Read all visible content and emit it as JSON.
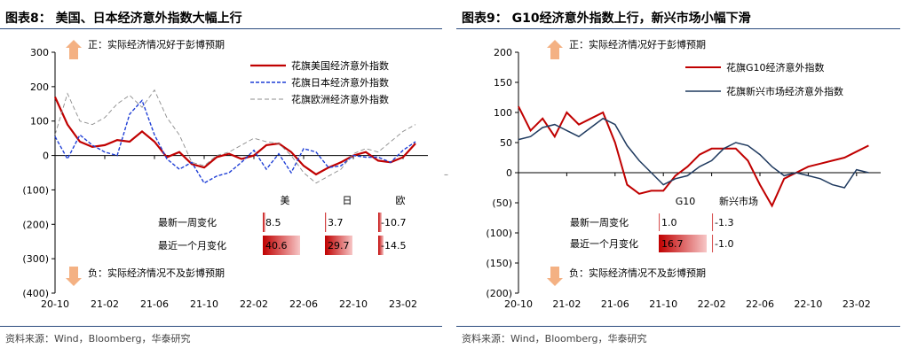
{
  "left": {
    "title": "图表8：  美国、日本经济意外指数大幅上行",
    "source": "资料来源：Wind，Bloomberg，华泰研究",
    "colors": {
      "us": "#c00000",
      "jp": "#1f3fd6",
      "eu": "#8c8c8c",
      "arrow": "#f4b183"
    },
    "chart_data": {
      "type": "line",
      "ylim": [
        -400,
        300
      ],
      "yticks": [
        "300",
        "200",
        "100",
        "0",
        "(100)",
        "(200)",
        "(300)",
        "(400)"
      ],
      "ytick_values": [
        300,
        200,
        100,
        0,
        -100,
        -200,
        -300,
        -400
      ],
      "xticks": [
        "20-10",
        "21-02",
        "21-06",
        "21-10",
        "22-02",
        "22-06",
        "22-10",
        "23-02"
      ],
      "xlim": [
        "2020-10",
        "2023-04"
      ],
      "annotations": {
        "up": "正：实际经济情况好于彭博预期",
        "down": "负：实际经济情况不及彭博预期"
      },
      "series": [
        {
          "name": "花旗美国经济意外指数",
          "style": "solid",
          "x": [
            "2020-10",
            "2020-11",
            "2020-12",
            "2021-01",
            "2021-02",
            "2021-03",
            "2021-04",
            "2021-05",
            "2021-06",
            "2021-07",
            "2021-08",
            "2021-09",
            "2021-10",
            "2021-11",
            "2021-12",
            "2022-01",
            "2022-02",
            "2022-03",
            "2022-04",
            "2022-05",
            "2022-06",
            "2022-07",
            "2022-08",
            "2022-09",
            "2022-10",
            "2022-11",
            "2022-12",
            "2023-01",
            "2023-02",
            "2023-03"
          ],
          "values": [
            170,
            90,
            40,
            25,
            30,
            45,
            40,
            70,
            40,
            -5,
            10,
            -25,
            -35,
            -5,
            5,
            -10,
            0,
            30,
            35,
            10,
            -30,
            -55,
            -35,
            -20,
            0,
            10,
            -15,
            -20,
            -5,
            35
          ]
        },
        {
          "name": "花旗日本经济意外指数",
          "style": "dashed",
          "x": [
            "2020-10",
            "2020-11",
            "2020-12",
            "2021-01",
            "2021-02",
            "2021-03",
            "2021-04",
            "2021-05",
            "2021-06",
            "2021-07",
            "2021-08",
            "2021-09",
            "2021-10",
            "2021-11",
            "2021-12",
            "2022-01",
            "2022-02",
            "2022-03",
            "2022-04",
            "2022-05",
            "2022-06",
            "2022-07",
            "2022-08",
            "2022-09",
            "2022-10",
            "2022-11",
            "2022-12",
            "2023-01",
            "2023-02",
            "2023-03"
          ],
          "values": [
            55,
            -10,
            60,
            30,
            10,
            0,
            120,
            160,
            60,
            -10,
            -40,
            -20,
            -80,
            -60,
            -50,
            -20,
            15,
            -40,
            5,
            -50,
            20,
            10,
            -35,
            -30,
            0,
            -5,
            -5,
            -20,
            15,
            40
          ]
        },
        {
          "name": "花旗欧洲经济意外指数",
          "style": "dashed-thin",
          "x": [
            "2020-10",
            "2020-11",
            "2020-12",
            "2021-01",
            "2021-02",
            "2021-03",
            "2021-04",
            "2021-05",
            "2021-06",
            "2021-07",
            "2021-08",
            "2021-09",
            "2021-10",
            "2021-11",
            "2021-12",
            "2022-01",
            "2022-02",
            "2022-03",
            "2022-04",
            "2022-05",
            "2022-06",
            "2022-07",
            "2022-08",
            "2022-09",
            "2022-10",
            "2022-11",
            "2022-12",
            "2023-01",
            "2023-02",
            "2023-03"
          ],
          "values": [
            60,
            180,
            100,
            90,
            110,
            150,
            175,
            140,
            190,
            110,
            60,
            -20,
            -30,
            0,
            10,
            30,
            50,
            40,
            35,
            0,
            -50,
            -80,
            -60,
            -40,
            5,
            20,
            10,
            40,
            70,
            90
          ]
        }
      ]
    },
    "table": {
      "headers": [
        "美",
        "日",
        "欧"
      ],
      "rows": [
        {
          "label": "最新一周变化",
          "values": [
            "8.5",
            "3.7",
            "-10.7"
          ],
          "fill": [
            0.06,
            0.03,
            0.08
          ]
        },
        {
          "label": "最近一个月变化",
          "values": [
            "40.6",
            "29.7",
            "-14.5"
          ],
          "fill": [
            0.84,
            0.62,
            0.12
          ]
        }
      ]
    }
  },
  "right": {
    "title": "图表9：  G10经济意外指数上行，新兴市场小幅下滑",
    "source": "资料来源：Wind，Bloomberg，华泰研究",
    "colors": {
      "g10": "#c00000",
      "em": "#1f3a5f",
      "arrow": "#f4b183"
    },
    "chart_data": {
      "type": "line",
      "ylim": [
        -200,
        200
      ],
      "yticks": [
        "200",
        "150",
        "100",
        "50",
        "0",
        "(50)",
        "(100)",
        "(150)",
        "(200)"
      ],
      "ytick_values": [
        200,
        150,
        100,
        50,
        0,
        -50,
        -100,
        -150,
        -200
      ],
      "xticks": [
        "20-10",
        "21-02",
        "21-06",
        "21-10",
        "22-02",
        "22-06",
        "22-10",
        "23-02"
      ],
      "xlim": [
        "2020-10",
        "2023-04"
      ],
      "annotations": {
        "up": "正：实际经济情况好于彭博预期",
        "down": "负：实际经济情况不及彭博预期"
      },
      "series": [
        {
          "name": "花旗G10经济意外指数",
          "style": "solid",
          "x": [
            "2020-10",
            "2020-11",
            "2020-12",
            "2021-01",
            "2021-02",
            "2021-03",
            "2021-04",
            "2021-05",
            "2021-06",
            "2021-07",
            "2021-08",
            "2021-09",
            "2021-10",
            "2021-11",
            "2021-12",
            "2022-01",
            "2022-02",
            "2022-03",
            "2022-04",
            "2022-05",
            "2022-06",
            "2022-07",
            "2022-08",
            "2022-09",
            "2022-10",
            "2022-11",
            "2022-12",
            "2023-01",
            "2023-02",
            "2023-03"
          ],
          "values": [
            110,
            70,
            90,
            60,
            100,
            80,
            90,
            100,
            50,
            -20,
            -35,
            -30,
            -30,
            -5,
            10,
            30,
            40,
            40,
            40,
            20,
            -20,
            -55,
            -10,
            0,
            10,
            15,
            20,
            25,
            35,
            45
          ]
        },
        {
          "name": "花旗新兴市场经济意外指数",
          "style": "solid",
          "x": [
            "2020-10",
            "2020-11",
            "2020-12",
            "2021-01",
            "2021-02",
            "2021-03",
            "2021-04",
            "2021-05",
            "2021-06",
            "2021-07",
            "2021-08",
            "2021-09",
            "2021-10",
            "2021-11",
            "2021-12",
            "2022-01",
            "2022-02",
            "2022-03",
            "2022-04",
            "2022-05",
            "2022-06",
            "2022-07",
            "2022-08",
            "2022-09",
            "2022-10",
            "2022-11",
            "2022-12",
            "2023-01",
            "2023-02",
            "2023-03"
          ],
          "values": [
            55,
            60,
            75,
            80,
            70,
            60,
            75,
            90,
            80,
            45,
            20,
            0,
            -20,
            -10,
            -5,
            10,
            20,
            40,
            50,
            45,
            30,
            10,
            -5,
            0,
            -5,
            -10,
            -20,
            -25,
            5,
            0
          ]
        }
      ]
    },
    "table": {
      "headers": [
        "G10",
        "新兴市场"
      ],
      "rows": [
        {
          "label": "最新一周变化",
          "values": [
            "1.0",
            "-1.3"
          ],
          "fill": [
            0.02,
            0.02
          ]
        },
        {
          "label": "最近一个月变化",
          "values": [
            "16.7",
            "-1.0"
          ],
          "fill": [
            0.9,
            0.02
          ]
        }
      ]
    }
  },
  "divider_mark": "–"
}
